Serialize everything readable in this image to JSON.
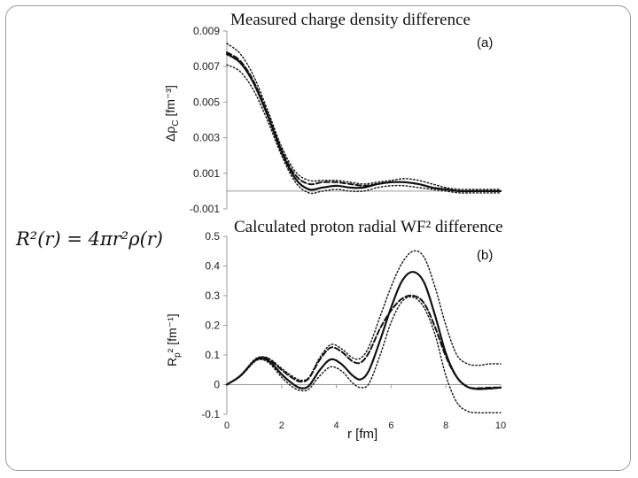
{
  "chart_data": [
    {
      "panel": "a",
      "type": "line",
      "title": "Measured charge density difference",
      "panel_label": "(a)",
      "ylabel": "ΔρC [fm⁻³]",
      "ylabel_main": "Δρ",
      "ylabel_sub": "C",
      "ylabel_unit": " [fm⁻³]",
      "xlim": [
        0,
        10
      ],
      "ylim": [
        -0.001,
        0.009
      ],
      "yticks": [
        -0.001,
        0.001,
        0.003,
        0.005,
        0.007,
        0.009
      ],
      "ytick_labels": [
        "-0.001",
        "0.001",
        "0.003",
        "0.005",
        "0.007",
        "0.009"
      ],
      "zero_line": true,
      "series": [
        {
          "style": "solid",
          "x": [
            0,
            0.5,
            1,
            1.5,
            2,
            2.5,
            3,
            3.5,
            4,
            4.5,
            5,
            5.5,
            6,
            6.5,
            7,
            7.5,
            8,
            8.5,
            9,
            9.5,
            10
          ],
          "y": [
            0.0077,
            0.0072,
            0.006,
            0.0042,
            0.0022,
            0.0007,
            0.0001,
            0.0002,
            0.0003,
            0.0002,
            0.0002,
            0.0004,
            0.0005,
            0.0005,
            0.0004,
            0.0002,
            0.0001,
            0.0,
            0.0,
            0.0,
            0.0
          ]
        },
        {
          "style": "dashed",
          "x": [
            0,
            0.5,
            1,
            1.5,
            2,
            2.5,
            3,
            3.5,
            4,
            4.5,
            5,
            5.5,
            6,
            6.5,
            7,
            7.5,
            8,
            8.5,
            9,
            9.5,
            10
          ],
          "y": [
            0.0078,
            0.0073,
            0.0061,
            0.0043,
            0.0023,
            0.0009,
            0.0004,
            0.0005,
            0.0005,
            0.0004,
            0.0003,
            0.0004,
            0.0005,
            0.0005,
            0.0004,
            0.0002,
            0.0001,
            0.0,
            0.0,
            0.0,
            0.0
          ]
        },
        {
          "style": "dotted",
          "x": [
            0,
            0.5,
            1,
            1.5,
            2,
            2.5,
            3,
            3.5,
            4,
            4.5,
            5,
            5.5,
            6,
            6.5,
            7,
            7.5,
            8,
            8.5,
            9,
            9.5,
            10
          ],
          "y": [
            0.0083,
            0.0077,
            0.0064,
            0.0045,
            0.0025,
            0.0011,
            0.0006,
            0.0006,
            0.0006,
            0.0005,
            0.0004,
            0.0005,
            0.0006,
            0.0007,
            0.0006,
            0.0004,
            0.0002,
            0.0001,
            0.0001,
            0.0001,
            0.0001
          ]
        },
        {
          "style": "dotted",
          "x": [
            0,
            0.5,
            1,
            1.5,
            2,
            2.5,
            3,
            3.5,
            4,
            4.5,
            5,
            5.5,
            6,
            6.5,
            7,
            7.5,
            8,
            8.5,
            9,
            9.5,
            10
          ],
          "y": [
            0.0071,
            0.0067,
            0.0056,
            0.0039,
            0.002,
            0.0005,
            -0.0001,
            0.0,
            0.0001,
            0.0,
            0.0,
            0.0002,
            0.0003,
            0.0003,
            0.0002,
            0.0001,
            0.0,
            -0.0001,
            -0.0001,
            -0.0001,
            -0.0001
          ]
        }
      ]
    },
    {
      "panel": "b",
      "type": "line",
      "title": "Calculated proton radial WF² difference",
      "panel_label": "(b)",
      "ylabel": "Rp² [fm⁻¹]",
      "ylabel_main": "R",
      "ylabel_sub": "p",
      "ylabel_unit": "² [fm⁻¹]",
      "xlabel": "r [fm]",
      "xlim": [
        0,
        10
      ],
      "ylim": [
        -0.1,
        0.5
      ],
      "xticks": [
        0,
        2,
        4,
        6,
        8,
        10
      ],
      "xtick_labels": [
        "0",
        "2",
        "4",
        "6",
        "8",
        "10"
      ],
      "yticks": [
        -0.1,
        0,
        0.1,
        0.2,
        0.3,
        0.4,
        0.5
      ],
      "ytick_labels": [
        "-0.1",
        "0",
        "0.1",
        "0.2",
        "0.3",
        "0.4",
        "0.5"
      ],
      "series": [
        {
          "style": "solid",
          "x": [
            0,
            0.5,
            1,
            1.3,
            1.6,
            2,
            2.4,
            2.7,
            3,
            3.4,
            3.8,
            4.2,
            4.6,
            4.9,
            5.2,
            5.6,
            6,
            6.4,
            6.8,
            7.2,
            7.6,
            8,
            8.4,
            8.8,
            9.2,
            9.6,
            10
          ],
          "y": [
            0,
            0.03,
            0.08,
            0.088,
            0.075,
            0.035,
            0.003,
            -0.012,
            -0.004,
            0.05,
            0.085,
            0.068,
            0.03,
            0.018,
            0.05,
            0.15,
            0.26,
            0.35,
            0.38,
            0.345,
            0.235,
            0.105,
            0.025,
            -0.008,
            -0.015,
            -0.013,
            -0.01
          ]
        },
        {
          "style": "dashed",
          "x": [
            0,
            0.5,
            1,
            1.3,
            1.6,
            2,
            2.4,
            2.7,
            3,
            3.4,
            3.8,
            4.2,
            4.6,
            4.9,
            5.2,
            5.6,
            6,
            6.4,
            6.8,
            7.2,
            7.6,
            8,
            8.4,
            8.8,
            9.2,
            9.6,
            10
          ],
          "y": [
            0,
            0.03,
            0.08,
            0.092,
            0.082,
            0.05,
            0.022,
            0.01,
            0.022,
            0.085,
            0.125,
            0.11,
            0.078,
            0.075,
            0.11,
            0.19,
            0.25,
            0.29,
            0.3,
            0.275,
            0.195,
            0.095,
            0.025,
            -0.008,
            -0.012,
            -0.01,
            -0.01
          ]
        },
        {
          "style": "dotted",
          "x": [
            0,
            0.5,
            1,
            1.3,
            1.6,
            2,
            2.4,
            2.7,
            3,
            3.4,
            3.8,
            4.2,
            4.6,
            4.9,
            5.2,
            5.6,
            6,
            6.4,
            6.8,
            7.2,
            7.6,
            8,
            8.4,
            8.8,
            9.2,
            9.6,
            10
          ],
          "y": [
            0,
            0.032,
            0.084,
            0.094,
            0.085,
            0.055,
            0.028,
            0.015,
            0.025,
            0.092,
            0.135,
            0.12,
            0.09,
            0.09,
            0.13,
            0.23,
            0.33,
            0.41,
            0.45,
            0.43,
            0.33,
            0.2,
            0.1,
            0.07,
            0.065,
            0.07,
            0.07
          ]
        },
        {
          "style": "dotted",
          "x": [
            0,
            0.5,
            1,
            1.3,
            1.6,
            2,
            2.4,
            2.7,
            3,
            3.4,
            3.8,
            4.2,
            4.6,
            4.9,
            5.2,
            5.6,
            6,
            6.4,
            6.8,
            7.2,
            7.6,
            8,
            8.4,
            8.8,
            9.2,
            9.6,
            10
          ],
          "y": [
            0,
            0.028,
            0.076,
            0.084,
            0.068,
            0.025,
            -0.008,
            -0.02,
            -0.015,
            0.03,
            0.06,
            0.045,
            0.005,
            -0.01,
            0.005,
            0.1,
            0.21,
            0.28,
            0.295,
            0.26,
            0.17,
            0.03,
            -0.06,
            -0.09,
            -0.095,
            -0.095,
            -0.095
          ]
        }
      ]
    }
  ],
  "formula": "R²(r) = 4πr²ρ(r)"
}
